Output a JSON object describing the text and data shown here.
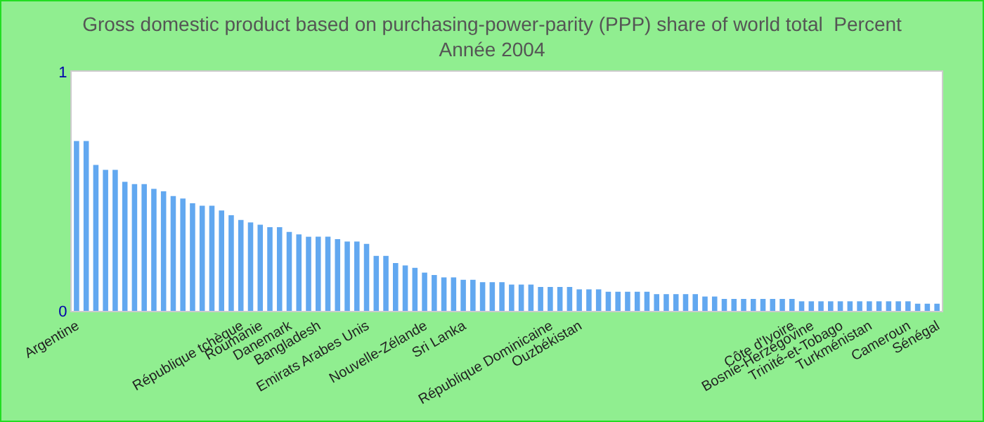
{
  "chart_data": {
    "type": "bar",
    "title": "Gross domestic product based on purchasing-power-parity (PPP) share of world total  Percent",
    "subtitle": "Année 2004",
    "categories": [
      "Argentine",
      null,
      null,
      null,
      null,
      null,
      null,
      null,
      null,
      null,
      null,
      null,
      null,
      null,
      null,
      null,
      null,
      "République tchèque",
      null,
      "Roumanie",
      null,
      null,
      "Danemark",
      null,
      null,
      "Bangladesh",
      null,
      null,
      null,
      null,
      "Emirats Arabes Unis",
      null,
      null,
      null,
      null,
      null,
      "Nouvelle-Zélande",
      null,
      null,
      null,
      "Sri Lanka",
      null,
      null,
      null,
      null,
      null,
      null,
      null,
      null,
      "République Dominicaine",
      null,
      null,
      "Ouzbékistan",
      null,
      null,
      null,
      null,
      null,
      null,
      null,
      null,
      null,
      null,
      null,
      null,
      null,
      null,
      null,
      null,
      null,
      null,
      null,
      null,
      null,
      "Côte d'Ivoire",
      null,
      "Bosnie-Herzégovine",
      null,
      null,
      "Trinité-et-Tobago",
      null,
      null,
      "Turkménistan",
      null,
      null,
      null,
      "Cameroun",
      null,
      null,
      "Sénégal"
    ],
    "values": [
      0.71,
      0.71,
      0.61,
      0.59,
      0.59,
      0.54,
      0.53,
      0.53,
      0.51,
      0.5,
      0.48,
      0.47,
      0.45,
      0.44,
      0.44,
      0.42,
      0.4,
      0.38,
      0.37,
      0.36,
      0.35,
      0.35,
      0.33,
      0.32,
      0.31,
      0.31,
      0.31,
      0.3,
      0.29,
      0.29,
      0.28,
      0.23,
      0.23,
      0.2,
      0.19,
      0.18,
      0.16,
      0.15,
      0.14,
      0.14,
      0.13,
      0.13,
      0.12,
      0.12,
      0.12,
      0.11,
      0.11,
      0.11,
      0.1,
      0.1,
      0.1,
      0.1,
      0.09,
      0.09,
      0.09,
      0.08,
      0.08,
      0.08,
      0.08,
      0.08,
      0.07,
      0.07,
      0.07,
      0.07,
      0.07,
      0.06,
      0.06,
      0.05,
      0.05,
      0.05,
      0.05,
      0.05,
      0.05,
      0.05,
      0.05,
      0.04,
      0.04,
      0.04,
      0.04,
      0.04,
      0.04,
      0.04,
      0.04,
      0.04,
      0.04,
      0.04,
      0.04,
      0.03,
      0.03,
      0.03
    ],
    "color": "#62a8f0",
    "ylim": [
      0,
      1
    ],
    "yticks": [
      0,
      1
    ],
    "grid": false
  }
}
